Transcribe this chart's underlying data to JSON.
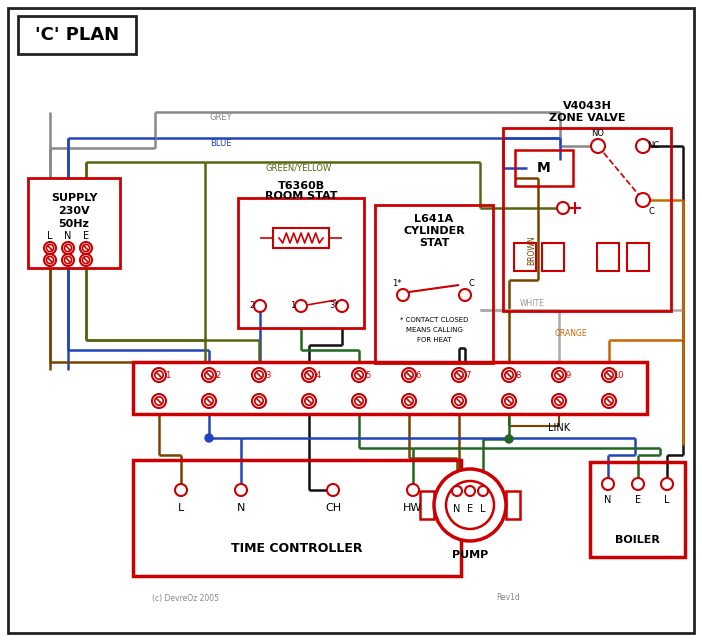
{
  "title": "'C' PLAN",
  "bg_color": "#ffffff",
  "border_color": "#333333",
  "red": "#cc0000",
  "wire_grey": "#888888",
  "wire_blue": "#2244bb",
  "wire_green": "#226622",
  "wire_black": "#111111",
  "wire_brown": "#774400",
  "wire_orange": "#cc6600",
  "wire_green_yellow": "#556611",
  "copyright": "(c) DevreOz 2005",
  "rev": "Rev1d"
}
